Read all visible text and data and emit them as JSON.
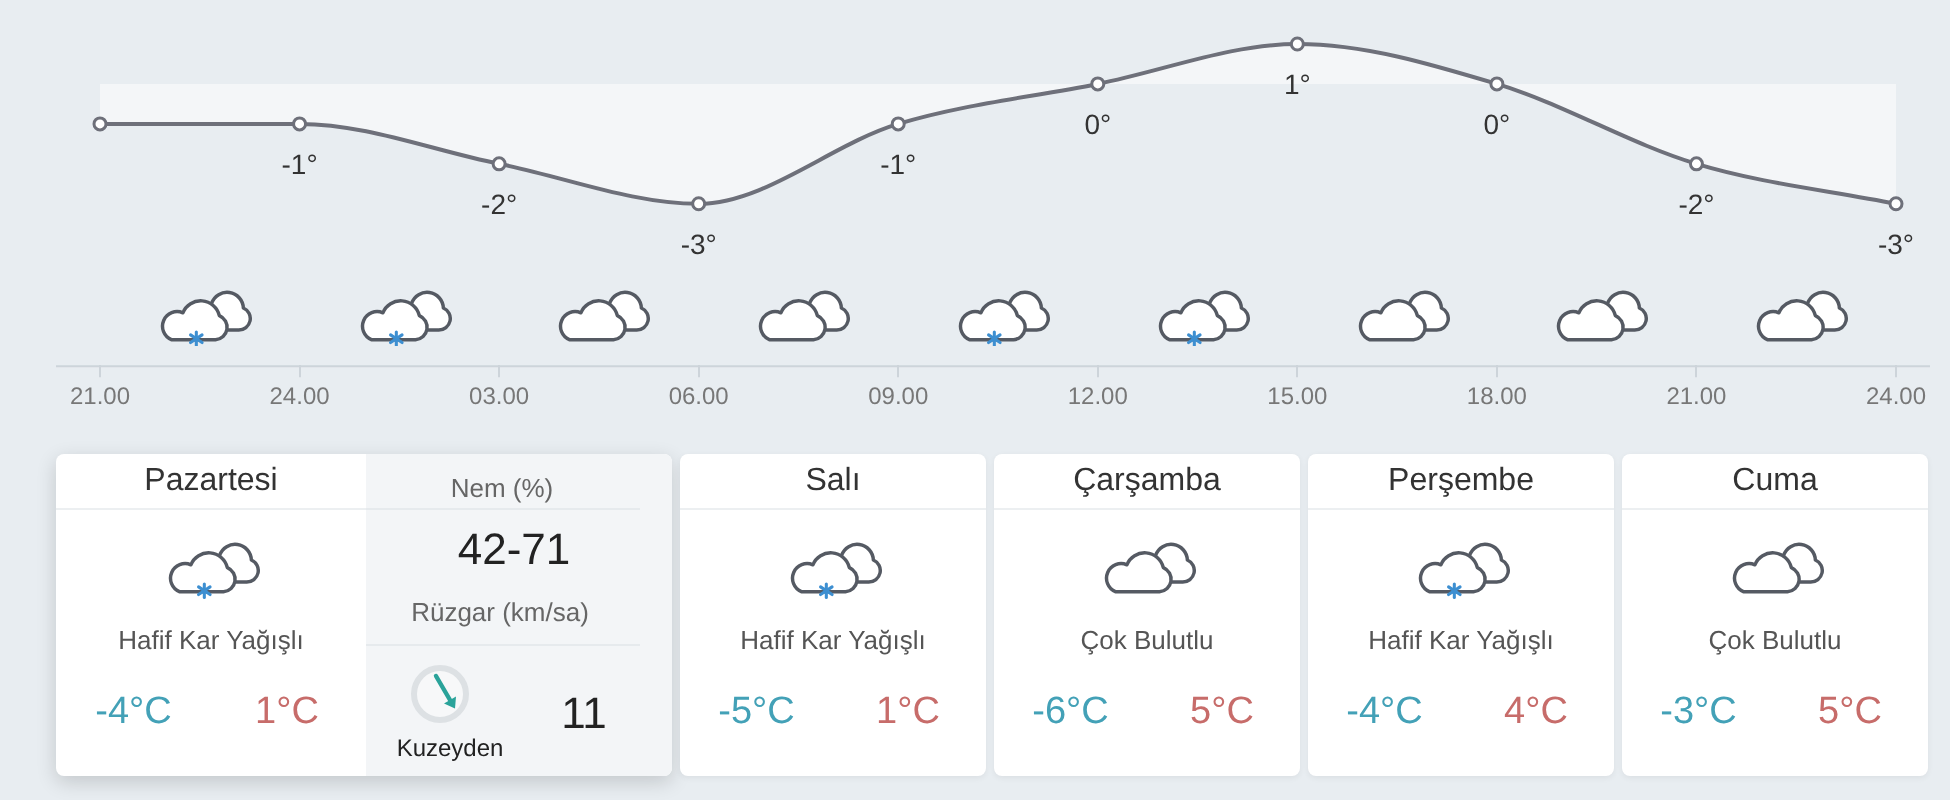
{
  "chart_data": [
    {
      "type": "area",
      "categories": [
        "21.00",
        "24.00",
        "03.00",
        "06.00",
        "09.00",
        "12.00",
        "15.00",
        "18.00",
        "21.00",
        "24.00"
      ],
      "values": [
        -1,
        -1,
        -2,
        -3,
        -1,
        0,
        1,
        0,
        -2,
        -3
      ],
      "value_labels": [
        null,
        "-1°",
        "-2°",
        "-3°",
        "-1°",
        "0°",
        "1°",
        "0°",
        "-2°",
        "-3°"
      ],
      "color": "#6e707a",
      "marker": "circle"
    },
    {
      "type": "other",
      "title": "Pazartesi",
      "annotations": [
        "Hafif Kar Yağışlı",
        "-4°C",
        "1°C",
        "Nem (%)",
        "42-71",
        "Rüzgar (km/sa)",
        "Kuzeyden",
        "11"
      ]
    },
    {
      "type": "other",
      "title": "Salı",
      "annotations": [
        "Hafif Kar Yağışlı",
        "-5°C",
        "1°C"
      ]
    },
    {
      "type": "other",
      "title": "Çarşamba",
      "annotations": [
        "Çok Bulutlu",
        "-6°C",
        "5°C"
      ]
    },
    {
      "type": "other",
      "title": "Perşembe",
      "annotations": [
        "Hafif Kar Yağışlı",
        "-4°C",
        "4°C"
      ]
    },
    {
      "type": "other",
      "title": "Cuma",
      "annotations": [
        "Çok Bulutlu",
        "-3°C",
        "5°C"
      ]
    }
  ]
}
